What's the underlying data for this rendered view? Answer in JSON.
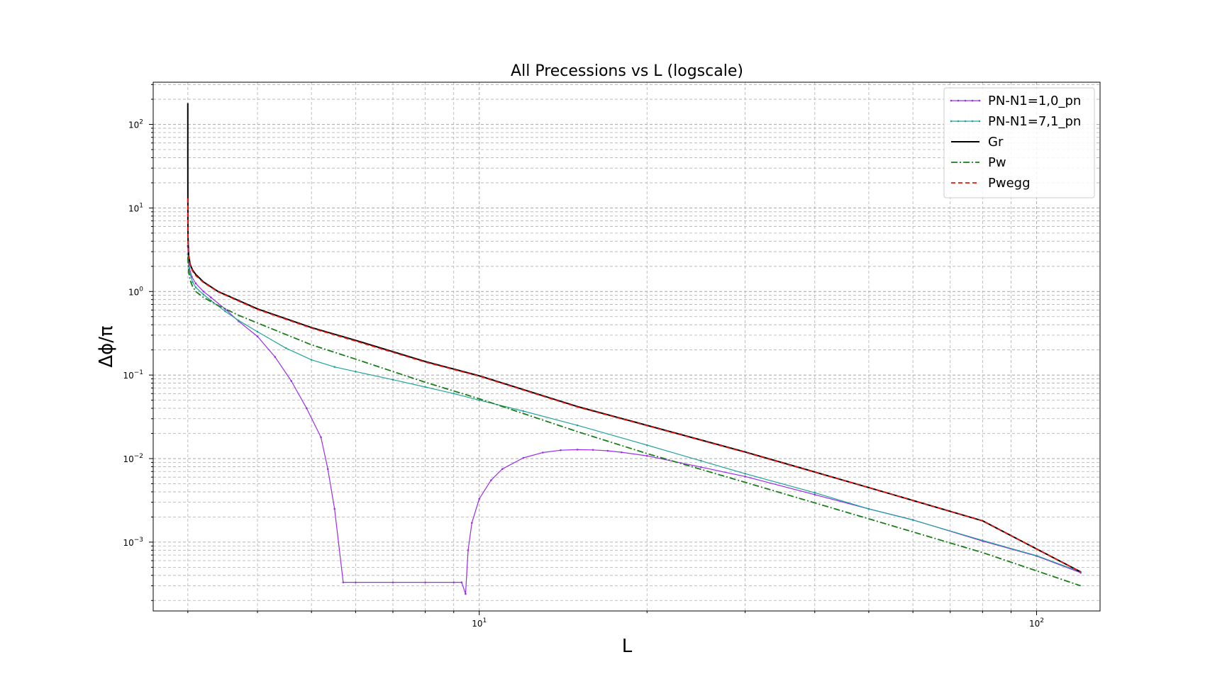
{
  "chart_data": {
    "type": "line",
    "title": "All Precessions vs L (logscale)",
    "xlabel": "L",
    "ylabel": "Δϕ/π",
    "xscale": "log",
    "yscale": "log",
    "xlim": [
      2.6,
      130
    ],
    "ylim": [
      0.00015,
      320
    ],
    "grid": "both major and minor, dashed gray",
    "legend_position": "top-right",
    "xticks": [
      {
        "value": 10,
        "base": "10",
        "exp": "1"
      },
      {
        "value": 100,
        "base": "10",
        "exp": "2"
      }
    ],
    "yticks": [
      {
        "value": 100,
        "base": "10",
        "exp": "2"
      },
      {
        "value": 10,
        "base": "10",
        "exp": "1"
      },
      {
        "value": 1,
        "base": "10",
        "exp": "0"
      },
      {
        "value": 0.1,
        "base": "10",
        "exp": "−1"
      },
      {
        "value": 0.01,
        "base": "10",
        "exp": "−2"
      },
      {
        "value": 0.001,
        "base": "10",
        "exp": "−3"
      }
    ],
    "series": [
      {
        "name": "PN-N1=1,0_pn",
        "color": "#9a2cf0",
        "style": "solid-dots",
        "width": 1.2,
        "x": [
          3.0,
          3.005,
          3.02,
          3.05,
          3.1,
          3.2,
          3.3,
          3.5,
          3.7,
          4.0,
          4.3,
          4.6,
          4.9,
          5.2,
          5.35,
          5.5,
          5.7,
          6.0,
          7.0,
          8.0,
          9.0,
          9.3,
          9.45,
          9.55,
          9.7,
          10.0,
          10.5,
          11.0,
          12.0,
          13.0,
          14.0,
          15.0,
          16.0,
          17.0,
          18.0,
          20.0,
          25.0,
          30.0,
          40.0,
          50.0,
          60.0,
          80.0,
          100.0,
          120.0
        ],
        "y": [
          3.5,
          2.5,
          1.9,
          1.5,
          1.25,
          1.0,
          0.85,
          0.62,
          0.44,
          0.29,
          0.165,
          0.085,
          0.04,
          0.018,
          0.0075,
          0.0025,
          0.00033,
          0.00033,
          0.00033,
          0.00033,
          0.00033,
          0.00033,
          0.00024,
          0.0008,
          0.0017,
          0.0033,
          0.0055,
          0.0075,
          0.0102,
          0.0118,
          0.0126,
          0.0128,
          0.0127,
          0.0124,
          0.0119,
          0.0108,
          0.0079,
          0.0061,
          0.0037,
          0.0025,
          0.00185,
          0.00103,
          0.00068,
          0.00043
        ]
      },
      {
        "name": "PN-N1=7,1_pn",
        "color": "#21a39a",
        "style": "solid-dots",
        "width": 1.2,
        "x": [
          3.0,
          3.01,
          3.03,
          3.06,
          3.1,
          3.2,
          3.3,
          3.5,
          3.7,
          4.0,
          4.5,
          5.0,
          5.5,
          6.0,
          7.0,
          8.0,
          9.0,
          10.0,
          12.0,
          15.0,
          20.0,
          25.0,
          30.0,
          40.0,
          50.0,
          60.0,
          80.0,
          100.0,
          120.0
        ],
        "y": [
          2.8,
          2.0,
          1.6,
          1.3,
          1.12,
          0.92,
          0.78,
          0.58,
          0.45,
          0.33,
          0.21,
          0.152,
          0.125,
          0.11,
          0.088,
          0.072,
          0.06,
          0.05,
          0.037,
          0.025,
          0.0145,
          0.0094,
          0.0066,
          0.0039,
          0.0025,
          0.00184,
          0.00105,
          0.00069,
          0.00044
        ]
      },
      {
        "name": "Gr",
        "color": "#000000",
        "style": "solid",
        "width": 2.0,
        "x": [
          3.0,
          3.0001,
          3.0005,
          3.001,
          3.003,
          3.01,
          3.03,
          3.06,
          3.1,
          3.2,
          3.4,
          3.7,
          4.0,
          5.0,
          6.0,
          8.0,
          10.0,
          15.0,
          20.0,
          30.0,
          50.0,
          80.0,
          120.0
        ],
        "y": [
          180,
          40,
          12,
          7.0,
          4.0,
          2.7,
          2.1,
          1.8,
          1.6,
          1.3,
          1.0,
          0.78,
          0.62,
          0.37,
          0.26,
          0.145,
          0.098,
          0.042,
          0.025,
          0.012,
          0.0045,
          0.0018,
          0.00044
        ]
      },
      {
        "name": "Pw",
        "color": "#1a7d1a",
        "style": "dashdot",
        "width": 1.8,
        "x": [
          3.0,
          3.005,
          3.01,
          3.03,
          3.06,
          3.1,
          3.2,
          3.4,
          3.7,
          4.0,
          5.0,
          6.0,
          8.0,
          10.0,
          15.0,
          20.0,
          30.0,
          50.0,
          80.0,
          120.0
        ],
        "y": [
          2.6,
          2.0,
          1.7,
          1.35,
          1.15,
          1.0,
          0.85,
          0.68,
          0.52,
          0.42,
          0.23,
          0.155,
          0.082,
          0.052,
          0.021,
          0.0115,
          0.0052,
          0.0019,
          0.00075,
          0.0003
        ]
      },
      {
        "name": "Pwegg",
        "color": "#e8130f",
        "style": "dashed",
        "width": 1.8,
        "x": [
          3.0,
          3.0005,
          3.001,
          3.003,
          3.01,
          3.03,
          3.06,
          3.1,
          3.2,
          3.4,
          3.7,
          4.0,
          5.0,
          6.0,
          8.0,
          10.0,
          15.0,
          20.0,
          30.0,
          50.0,
          80.0,
          120.0
        ],
        "y": [
          13,
          9.0,
          6.5,
          3.8,
          2.6,
          2.05,
          1.75,
          1.55,
          1.28,
          0.99,
          0.77,
          0.61,
          0.365,
          0.255,
          0.143,
          0.097,
          0.0415,
          0.0248,
          0.0119,
          0.0045,
          0.0018,
          0.00044
        ]
      }
    ]
  }
}
